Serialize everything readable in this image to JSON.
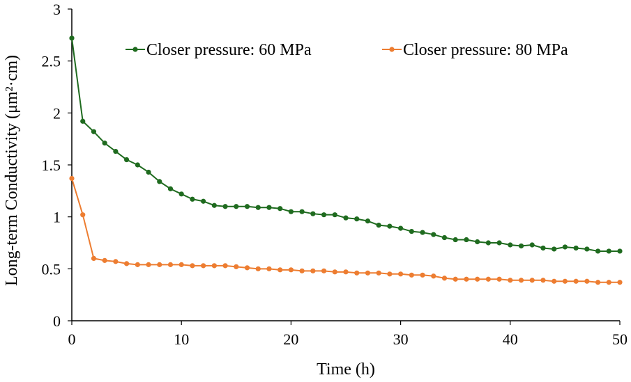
{
  "chart_data": {
    "type": "line",
    "title": "",
    "xlabel": "Time (h)",
    "ylabel": "Long-term Conductivity (μm²·cm)",
    "xlim": [
      0,
      50
    ],
    "ylim": [
      0,
      3
    ],
    "xticks": [
      "0",
      "10",
      "20",
      "30",
      "40",
      "50"
    ],
    "yticks": [
      "0",
      "0.5",
      "1",
      "1.5",
      "2",
      "2.5",
      "3"
    ],
    "grid": false,
    "legend_position": "top",
    "x": [
      0,
      1,
      2,
      3,
      4,
      5,
      6,
      7,
      8,
      9,
      10,
      11,
      12,
      13,
      14,
      15,
      16,
      17,
      18,
      19,
      20,
      21,
      22,
      23,
      24,
      25,
      26,
      27,
      28,
      29,
      30,
      31,
      32,
      33,
      34,
      35,
      36,
      37,
      38,
      39,
      40,
      41,
      42,
      43,
      44,
      45,
      46,
      47,
      48,
      49,
      50
    ],
    "series": [
      {
        "name": "Closer pressure: 60 MPa",
        "color": "#1f6b1f",
        "values": [
          2.72,
          1.92,
          1.82,
          1.71,
          1.63,
          1.55,
          1.5,
          1.43,
          1.34,
          1.27,
          1.22,
          1.17,
          1.15,
          1.11,
          1.1,
          1.1,
          1.1,
          1.09,
          1.09,
          1.08,
          1.05,
          1.05,
          1.03,
          1.02,
          1.02,
          0.99,
          0.98,
          0.96,
          0.92,
          0.91,
          0.89,
          0.86,
          0.85,
          0.83,
          0.8,
          0.78,
          0.78,
          0.76,
          0.75,
          0.75,
          0.73,
          0.72,
          0.73,
          0.7,
          0.69,
          0.71,
          0.7,
          0.69,
          0.67,
          0.67,
          0.67
        ]
      },
      {
        "name": "Closer pressure: 80 MPa",
        "color": "#ed7d31",
        "values": [
          1.37,
          1.02,
          0.6,
          0.58,
          0.57,
          0.55,
          0.54,
          0.54,
          0.54,
          0.54,
          0.54,
          0.53,
          0.53,
          0.53,
          0.53,
          0.52,
          0.51,
          0.5,
          0.5,
          0.49,
          0.49,
          0.48,
          0.48,
          0.48,
          0.47,
          0.47,
          0.46,
          0.46,
          0.46,
          0.45,
          0.45,
          0.44,
          0.44,
          0.43,
          0.41,
          0.4,
          0.4,
          0.4,
          0.4,
          0.4,
          0.39,
          0.39,
          0.39,
          0.39,
          0.38,
          0.38,
          0.38,
          0.38,
          0.37,
          0.37,
          0.37
        ]
      }
    ]
  }
}
